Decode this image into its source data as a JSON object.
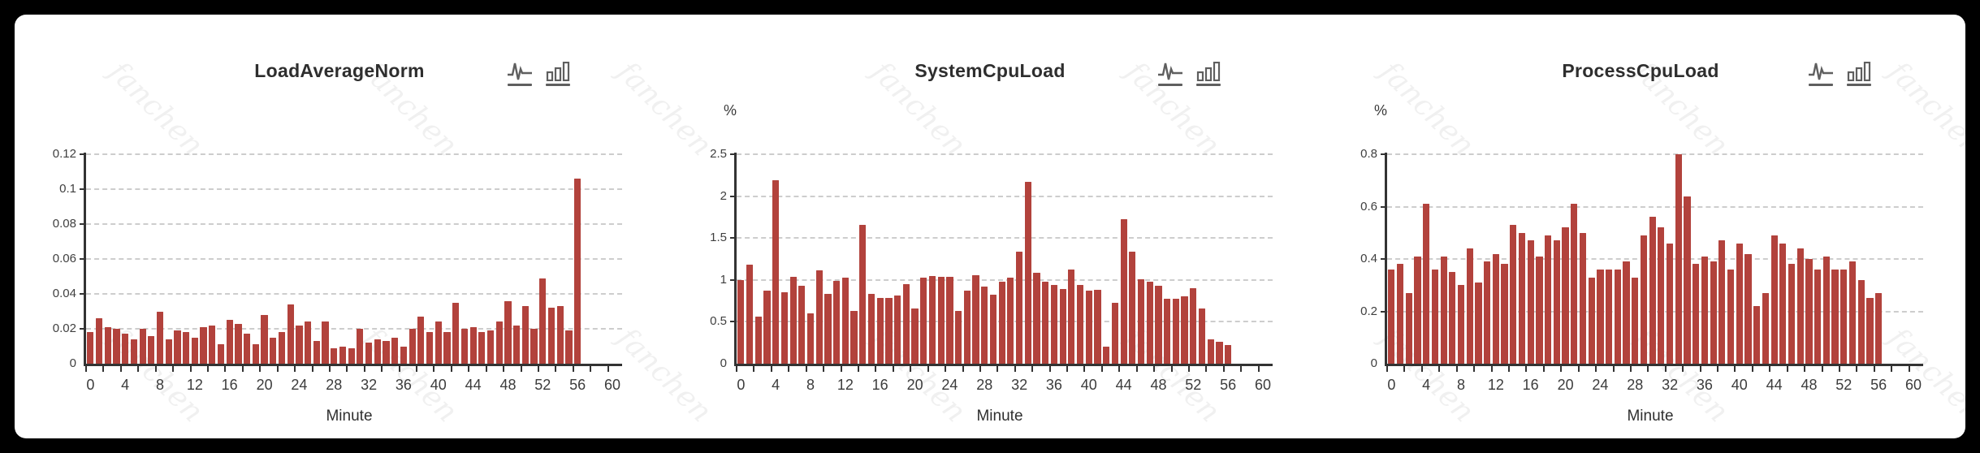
{
  "page": {
    "background_color": "#000000",
    "panel_color": "#ffffff",
    "watermark_text": "fanchen",
    "bar_color": "#b2423c",
    "grid_color": "#cdcdcd",
    "axis_color": "#333333"
  },
  "toolbar": {
    "icons": [
      "line-chart-view",
      "bar-chart-view"
    ]
  },
  "chart_data": [
    {
      "type": "bar",
      "title": "LoadAverageNorm",
      "xlabel": "Minute",
      "ylabel": "",
      "xlim": [
        0,
        60
      ],
      "ylim": [
        0,
        0.12
      ],
      "grid": "horizontal-dashed",
      "legend": "none",
      "bar_color": "#b2423c",
      "x_tick_labels": [
        "0",
        "4",
        "8",
        "12",
        "16",
        "20",
        "24",
        "28",
        "32",
        "36",
        "40",
        "44",
        "48",
        "52",
        "56",
        "60"
      ],
      "y_ticks": [
        0,
        0.02,
        0.04,
        0.06,
        0.08,
        0.1,
        0.12
      ],
      "y_tick_labels": [
        "0",
        "0.02",
        "0.04",
        "0.06",
        "0.08",
        "0.1",
        "0.12"
      ],
      "x": [
        0,
        1,
        2,
        3,
        4,
        5,
        6,
        7,
        8,
        9,
        10,
        11,
        12,
        13,
        14,
        15,
        16,
        17,
        18,
        19,
        20,
        21,
        22,
        23,
        24,
        25,
        26,
        27,
        28,
        29,
        30,
        31,
        32,
        33,
        34,
        35,
        36,
        37,
        38,
        39,
        40,
        41,
        42,
        43,
        44,
        45,
        46,
        47,
        48,
        49,
        50,
        51,
        52,
        53,
        54,
        55,
        56
      ],
      "values": [
        0.018,
        0.026,
        0.021,
        0.02,
        0.017,
        0.014,
        0.02,
        0.016,
        0.03,
        0.014,
        0.019,
        0.018,
        0.015,
        0.021,
        0.022,
        0.011,
        0.025,
        0.023,
        0.017,
        0.011,
        0.028,
        0.015,
        0.018,
        0.034,
        0.022,
        0.024,
        0.013,
        0.024,
        0.009,
        0.01,
        0.009,
        0.02,
        0.012,
        0.014,
        0.013,
        0.015,
        0.01,
        0.02,
        0.027,
        0.018,
        0.024,
        0.018,
        0.035,
        0.02,
        0.021,
        0.018,
        0.019,
        0.024,
        0.036,
        0.022,
        0.033,
        0.02,
        0.049,
        0.032,
        0.033,
        0.019,
        0.106
      ]
    },
    {
      "type": "bar",
      "title": "SystemCpuLoad",
      "xlabel": "Minute",
      "ylabel": "%",
      "xlim": [
        0,
        60
      ],
      "ylim": [
        0,
        2.5
      ],
      "grid": "horizontal-dashed",
      "legend": "none",
      "bar_color": "#b2423c",
      "x_tick_labels": [
        "0",
        "4",
        "8",
        "12",
        "16",
        "20",
        "24",
        "28",
        "32",
        "36",
        "40",
        "44",
        "48",
        "52",
        "56",
        "60"
      ],
      "y_ticks": [
        0,
        0.5,
        1,
        1.5,
        2,
        2.5
      ],
      "y_tick_labels": [
        "0",
        "0.5",
        "1",
        "1.5",
        "2",
        "2.5"
      ],
      "x": [
        0,
        1,
        2,
        3,
        4,
        5,
        6,
        7,
        8,
        9,
        10,
        11,
        12,
        13,
        14,
        15,
        16,
        17,
        18,
        19,
        20,
        21,
        22,
        23,
        24,
        25,
        26,
        27,
        28,
        29,
        30,
        31,
        32,
        33,
        34,
        35,
        36,
        37,
        38,
        39,
        40,
        41,
        42,
        43,
        44,
        45,
        46,
        47,
        48,
        49,
        50,
        51,
        52,
        53,
        54,
        55,
        56
      ],
      "values": [
        1.0,
        1.18,
        0.56,
        0.87,
        2.19,
        0.85,
        1.04,
        0.93,
        0.6,
        1.11,
        0.83,
        0.99,
        1.03,
        0.63,
        1.66,
        0.83,
        0.79,
        0.79,
        0.81,
        0.95,
        0.66,
        1.03,
        1.05,
        1.04,
        1.04,
        0.63,
        0.87,
        1.06,
        0.92,
        0.82,
        0.98,
        1.03,
        1.34,
        2.17,
        1.09,
        0.98,
        0.94,
        0.89,
        1.12,
        0.94,
        0.87,
        0.88,
        0.2,
        0.73,
        1.73,
        1.34,
        1.01,
        0.98,
        0.93,
        0.78,
        0.78,
        0.8,
        0.9,
        0.66,
        0.29,
        0.26,
        0.22
      ]
    },
    {
      "type": "bar",
      "title": "ProcessCpuLoad",
      "xlabel": "Minute",
      "ylabel": "%",
      "xlim": [
        0,
        60
      ],
      "ylim": [
        0,
        0.8
      ],
      "grid": "horizontal-dashed",
      "legend": "none",
      "bar_color": "#b2423c",
      "x_tick_labels": [
        "0",
        "4",
        "8",
        "12",
        "16",
        "20",
        "24",
        "28",
        "32",
        "36",
        "40",
        "44",
        "48",
        "52",
        "56",
        "60"
      ],
      "y_ticks": [
        0,
        0.2,
        0.4,
        0.6,
        0.8
      ],
      "y_tick_labels": [
        "0",
        "0.2",
        "0.4",
        "0.6",
        "0.8"
      ],
      "x": [
        0,
        1,
        2,
        3,
        4,
        5,
        6,
        7,
        8,
        9,
        10,
        11,
        12,
        13,
        14,
        15,
        16,
        17,
        18,
        19,
        20,
        21,
        22,
        23,
        24,
        25,
        26,
        27,
        28,
        29,
        30,
        31,
        32,
        33,
        34,
        35,
        36,
        37,
        38,
        39,
        40,
        41,
        42,
        43,
        44,
        45,
        46,
        47,
        48,
        49,
        50,
        51,
        52,
        53,
        54,
        55,
        56
      ],
      "values": [
        0.36,
        0.38,
        0.27,
        0.41,
        0.61,
        0.36,
        0.41,
        0.35,
        0.3,
        0.44,
        0.31,
        0.39,
        0.42,
        0.38,
        0.53,
        0.5,
        0.47,
        0.41,
        0.49,
        0.47,
        0.52,
        0.61,
        0.5,
        0.33,
        0.36,
        0.36,
        0.36,
        0.39,
        0.33,
        0.49,
        0.56,
        0.52,
        0.46,
        0.8,
        0.64,
        0.38,
        0.41,
        0.39,
        0.47,
        0.36,
        0.46,
        0.42,
        0.22,
        0.27,
        0.49,
        0.46,
        0.38,
        0.44,
        0.4,
        0.36,
        0.41,
        0.36,
        0.36,
        0.39,
        0.32,
        0.25,
        0.27
      ]
    }
  ]
}
